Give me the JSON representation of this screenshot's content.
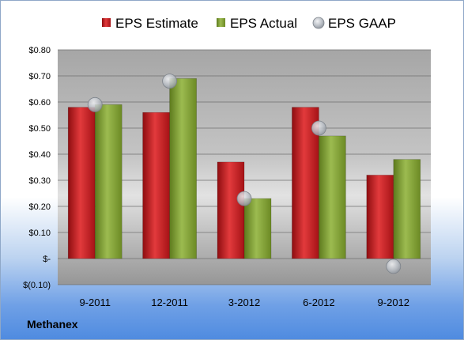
{
  "company": "Methanex",
  "chart_data": {
    "type": "bar",
    "categories": [
      "9-2011",
      "12-2011",
      "3-2012",
      "6-2012",
      "9-2012"
    ],
    "series": [
      {
        "name": "EPS Estimate",
        "kind": "bar",
        "color": "#c0161b",
        "values": [
          0.58,
          0.56,
          0.37,
          0.58,
          0.32
        ]
      },
      {
        "name": "EPS Actual",
        "kind": "bar",
        "color": "#7a9a2c",
        "values": [
          0.59,
          0.69,
          0.23,
          0.47,
          0.38
        ]
      },
      {
        "name": "EPS GAAP",
        "kind": "marker",
        "color": "#a7acb3",
        "values": [
          0.59,
          0.68,
          0.23,
          0.5,
          -0.03
        ]
      }
    ],
    "ylim": [
      -0.1,
      0.8
    ],
    "yticks": [
      0.8,
      0.7,
      0.6,
      0.5,
      0.4,
      0.3,
      0.2,
      0.1,
      0,
      -0.1
    ],
    "ytick_labels": [
      "$0.80",
      "$0.70",
      "$0.60",
      "$0.50",
      "$0.40",
      "$0.30",
      "$0.20",
      "$0.10",
      "$-",
      "$(0.10)"
    ],
    "grid": true,
    "legend_position": "top"
  }
}
